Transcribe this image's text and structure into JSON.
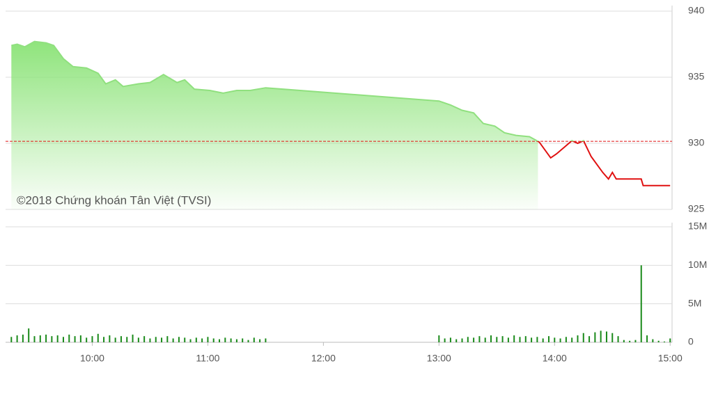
{
  "chart_data": [
    {
      "type": "area",
      "annotation": "©2018 Chứng khoán Tân Việt (TVSI)",
      "x": [
        558,
        561,
        565,
        570,
        576,
        580,
        585,
        590,
        597,
        603,
        607,
        612,
        616,
        624,
        630,
        637,
        644,
        648,
        653,
        661,
        668,
        675,
        682,
        690,
        780,
        786,
        792,
        798,
        803,
        809,
        814,
        820,
        827,
        832,
        838,
        841,
        845,
        849,
        852,
        855,
        859,
        865,
        868,
        870,
        872,
        885,
        886,
        900
      ],
      "values": [
        937.4,
        937.5,
        937.3,
        937.7,
        937.6,
        937.4,
        936.4,
        935.8,
        935.7,
        935.3,
        934.5,
        934.8,
        934.3,
        934.5,
        934.6,
        935.2,
        934.6,
        934.8,
        934.1,
        934.0,
        933.8,
        934.0,
        934.0,
        934.2,
        933.2,
        932.9,
        932.5,
        932.3,
        931.5,
        931.3,
        930.8,
        930.6,
        930.5,
        930.1,
        928.9,
        929.2,
        929.7,
        930.2,
        930.0,
        930.2,
        929.0,
        927.8,
        927.3,
        927.8,
        927.3,
        927.3,
        926.8,
        926.8
      ],
      "reference": 930.15,
      "color": "#90e07f",
      "down_color": "#e01010",
      "xlim": [
        555,
        901
      ],
      "ylim": [
        925,
        940
      ],
      "yticks": [
        925,
        930,
        935,
        940
      ],
      "grid": true
    },
    {
      "type": "bar",
      "x": [
        558,
        561,
        564,
        567,
        570,
        573,
        576,
        579,
        582,
        585,
        588,
        591,
        594,
        597,
        600,
        603,
        606,
        609,
        612,
        615,
        618,
        621,
        624,
        627,
        630,
        633,
        636,
        639,
        642,
        645,
        648,
        651,
        654,
        657,
        660,
        663,
        666,
        669,
        672,
        675,
        678,
        681,
        684,
        687,
        690,
        780,
        783,
        786,
        789,
        792,
        795,
        798,
        801,
        804,
        807,
        810,
        813,
        816,
        819,
        822,
        825,
        828,
        831,
        834,
        837,
        840,
        843,
        846,
        849,
        852,
        855,
        858,
        861,
        864,
        867,
        870,
        873,
        876,
        879,
        882,
        885,
        888,
        891,
        894,
        897,
        900
      ],
      "values": [
        0.7,
        0.9,
        1.0,
        1.8,
        0.8,
        0.9,
        1.0,
        0.8,
        0.9,
        0.7,
        1.0,
        0.8,
        0.9,
        0.6,
        0.8,
        1.1,
        0.7,
        0.9,
        0.6,
        0.8,
        0.7,
        1.0,
        0.6,
        0.8,
        0.5,
        0.7,
        0.6,
        0.8,
        0.5,
        0.7,
        0.6,
        0.4,
        0.6,
        0.5,
        0.7,
        0.5,
        0.4,
        0.6,
        0.5,
        0.4,
        0.5,
        0.3,
        0.6,
        0.4,
        0.5,
        0.9,
        0.5,
        0.6,
        0.4,
        0.5,
        0.7,
        0.6,
        0.8,
        0.6,
        0.9,
        0.7,
        0.8,
        0.6,
        0.9,
        0.7,
        0.8,
        0.6,
        0.7,
        0.5,
        0.8,
        0.6,
        0.5,
        0.7,
        0.6,
        0.9,
        1.2,
        0.8,
        1.3,
        1.5,
        1.4,
        1.2,
        0.8,
        0.3,
        0.2,
        0.3,
        10.0,
        0.9,
        0.4,
        0.2,
        0.1,
        0.5
      ],
      "color": "#1a8a1a",
      "xlim": [
        555,
        901
      ],
      "ylim": [
        0,
        15
      ],
      "yticks": [
        0,
        {
          "value": 5,
          "label": "5M"
        },
        {
          "value": 10,
          "label": "10M"
        },
        {
          "value": 15,
          "label": "15M"
        }
      ],
      "xticks": [
        {
          "value": 600,
          "label": "10:00"
        },
        {
          "value": 660,
          "label": "11:00"
        },
        {
          "value": 720,
          "label": "12:00"
        },
        {
          "value": 780,
          "label": "13:00"
        },
        {
          "value": 840,
          "label": "14:00"
        },
        {
          "value": 900,
          "label": "15:00"
        }
      ],
      "grid": true
    }
  ]
}
